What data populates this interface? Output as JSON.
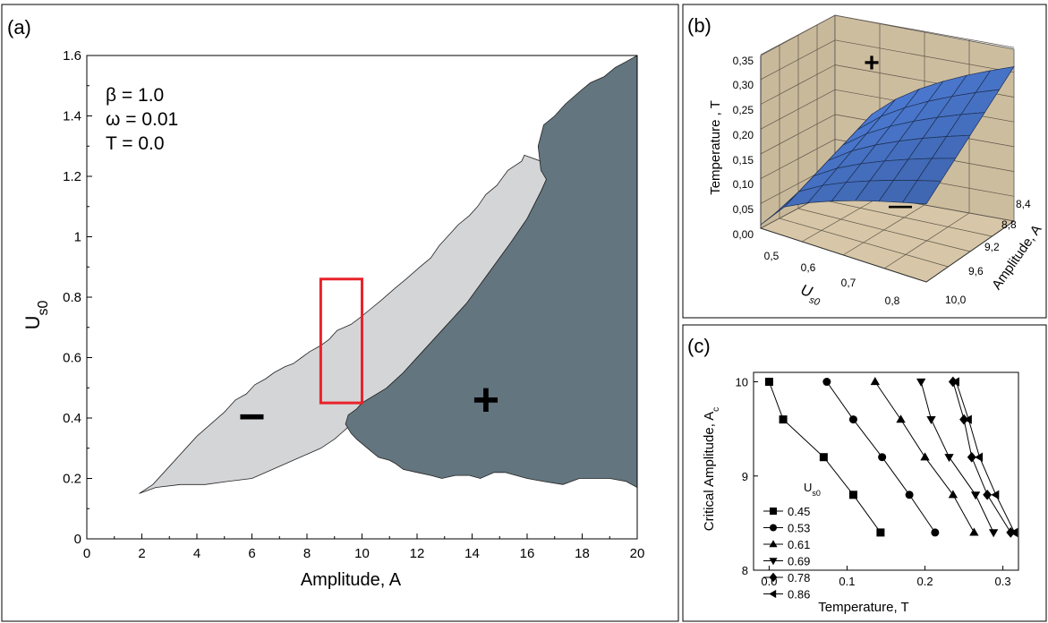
{
  "chart_data": [
    {
      "panel_label": "(a)",
      "type": "area",
      "xlabel": "Amplitude, A",
      "ylabel": "U",
      "ylabel_sub": "s0",
      "xlim": [
        0,
        20
      ],
      "ylim": [
        0,
        1.6
      ],
      "x_ticks": [
        0,
        2,
        4,
        6,
        8,
        10,
        12,
        14,
        16,
        18,
        20
      ],
      "y_ticks": [
        0,
        0.2,
        0.4,
        0.6,
        0.8,
        1,
        1.2,
        1.4,
        1.6
      ],
      "y_tick_labels": [
        "0",
        "0.2",
        "0.4",
        "0.6",
        "0.8",
        "1",
        "1.2",
        "1.4",
        "1.6"
      ],
      "annotations": [
        "β = 1.0",
        "ω = 0.01",
        "T = 0.0"
      ],
      "minus_sign": "−",
      "plus_sign": "+",
      "minus_pos": [
        6,
        0.4
      ],
      "plus_pos": [
        14.5,
        0.46
      ],
      "colors": {
        "light_region": "#d4d5d7",
        "dark_region": "#63757e",
        "highlight": "#e8232a"
      },
      "highlight_rect": {
        "x": [
          8.5,
          10
        ],
        "y": [
          0.45,
          0.86
        ]
      },
      "light_region": [
        [
          1.9,
          0.15
        ],
        [
          2.5,
          0.17
        ],
        [
          3.4,
          0.18
        ],
        [
          4.3,
          0.18
        ],
        [
          5.1,
          0.19
        ],
        [
          6.0,
          0.2
        ],
        [
          6.5,
          0.22
        ],
        [
          7.0,
          0.24
        ],
        [
          7.5,
          0.26
        ],
        [
          8.0,
          0.28
        ],
        [
          8.5,
          0.3
        ],
        [
          9.0,
          0.33
        ],
        [
          9.5,
          0.37
        ],
        [
          10.0,
          0.41
        ],
        [
          10.4,
          0.45
        ],
        [
          10.9,
          0.5
        ],
        [
          11.5,
          0.55
        ],
        [
          12.2,
          0.62
        ],
        [
          13.0,
          0.7
        ],
        [
          13.8,
          0.78
        ],
        [
          14.6,
          0.88
        ],
        [
          15.4,
          0.98
        ],
        [
          16.0,
          1.06
        ],
        [
          16.5,
          1.15
        ],
        [
          16.7,
          1.19
        ],
        [
          16.5,
          1.25
        ],
        [
          15.9,
          1.27
        ],
        [
          15.8,
          1.25
        ],
        [
          15.3,
          1.22
        ],
        [
          14.9,
          1.17
        ],
        [
          14.5,
          1.14
        ],
        [
          14.2,
          1.1
        ],
        [
          13.9,
          1.07
        ],
        [
          13.5,
          1.04
        ],
        [
          13.2,
          1.01
        ],
        [
          12.8,
          0.97
        ],
        [
          12.5,
          0.93
        ],
        [
          12.1,
          0.9
        ],
        [
          11.6,
          0.86
        ],
        [
          11.2,
          0.83
        ],
        [
          10.7,
          0.79
        ],
        [
          10.3,
          0.76
        ],
        [
          9.9,
          0.73
        ],
        [
          9.6,
          0.71
        ],
        [
          9.1,
          0.69
        ],
        [
          8.8,
          0.66
        ],
        [
          8.5,
          0.64
        ],
        [
          8.1,
          0.62
        ],
        [
          7.8,
          0.6
        ],
        [
          7.5,
          0.58
        ],
        [
          7.2,
          0.57
        ],
        [
          6.8,
          0.55
        ],
        [
          6.5,
          0.53
        ],
        [
          6.1,
          0.51
        ],
        [
          5.8,
          0.48
        ],
        [
          5.4,
          0.46
        ],
        [
          5.0,
          0.42
        ],
        [
          4.5,
          0.38
        ],
        [
          4.0,
          0.34
        ],
        [
          3.6,
          0.3
        ],
        [
          3.2,
          0.26
        ],
        [
          2.8,
          0.22
        ],
        [
          2.4,
          0.18
        ]
      ],
      "dark_region": [
        [
          10.0,
          0.45
        ],
        [
          10.9,
          0.5
        ],
        [
          11.5,
          0.55
        ],
        [
          12.2,
          0.62
        ],
        [
          13.0,
          0.7
        ],
        [
          13.8,
          0.78
        ],
        [
          14.6,
          0.88
        ],
        [
          15.4,
          0.98
        ],
        [
          16.0,
          1.06
        ],
        [
          16.5,
          1.15
        ],
        [
          16.7,
          1.19
        ],
        [
          16.5,
          1.22
        ],
        [
          16.4,
          1.3
        ],
        [
          16.6,
          1.37
        ],
        [
          17.0,
          1.4
        ],
        [
          17.4,
          1.44
        ],
        [
          17.9,
          1.48
        ],
        [
          18.3,
          1.51
        ],
        [
          18.8,
          1.53
        ],
        [
          19.2,
          1.56
        ],
        [
          19.6,
          1.58
        ],
        [
          20.0,
          1.6
        ],
        [
          20.0,
          0.17
        ],
        [
          19.6,
          0.19
        ],
        [
          19.0,
          0.2
        ],
        [
          18.4,
          0.2
        ],
        [
          17.9,
          0.2
        ],
        [
          17.3,
          0.18
        ],
        [
          16.6,
          0.19
        ],
        [
          16.0,
          0.2
        ],
        [
          15.6,
          0.21
        ],
        [
          15.2,
          0.22
        ],
        [
          14.8,
          0.22
        ],
        [
          14.3,
          0.2
        ],
        [
          13.9,
          0.21
        ],
        [
          13.4,
          0.21
        ],
        [
          12.9,
          0.2
        ],
        [
          12.5,
          0.21
        ],
        [
          12.0,
          0.22
        ],
        [
          11.5,
          0.23
        ],
        [
          11.2,
          0.25
        ],
        [
          11.0,
          0.26
        ],
        [
          10.6,
          0.27
        ],
        [
          10.2,
          0.3
        ],
        [
          9.8,
          0.33
        ],
        [
          9.6,
          0.35
        ],
        [
          9.4,
          0.38
        ],
        [
          9.5,
          0.41
        ],
        [
          9.8,
          0.43
        ]
      ]
    },
    {
      "panel_label": "(b)",
      "type": "surface",
      "xlabel": "U",
      "xlabel_sub": "s0",
      "ylabel": "Amplitude, A",
      "zlabel": "Temperature , T",
      "x_ticks": [
        "0,5",
        "0,6",
        "0,7",
        "0,8"
      ],
      "y_ticks": [
        "8,4",
        "8,8",
        "9,2",
        "9,6",
        "10,0"
      ],
      "z_ticks": [
        "0,00",
        "0,05",
        "0,10",
        "0,15",
        "0,20",
        "0,25",
        "0,30",
        "0,35"
      ],
      "plus_sign": "+",
      "minus_sign": "—",
      "colors": {
        "floor": "#d7c7a8",
        "wall": "#c4b497",
        "surface": "#4f7dc4"
      }
    },
    {
      "panel_label": "(c)",
      "type": "line",
      "xlabel": "Temperature, T",
      "ylabel": "Critical Amplitude, A",
      "ylabel_sub": "c",
      "xlim": [
        -0.02,
        0.32
      ],
      "ylim": [
        8,
        10.1
      ],
      "x_ticks": [
        0.0,
        0.1,
        0.2,
        0.3
      ],
      "x_tick_labels": [
        "0.0",
        "0.1",
        "0.2",
        "0.3"
      ],
      "y_ticks": [
        8,
        9,
        10
      ],
      "y_tick_labels": [
        "8",
        "9",
        "10"
      ],
      "legend_title": "U",
      "legend_title_sub": "s0",
      "legend_placement": "left",
      "series": [
        {
          "name": "0.45",
          "marker": "square",
          "x": [
            0.0,
            0.018,
            0.07,
            0.108,
            0.143
          ],
          "y": [
            10.0,
            9.6,
            9.2,
            8.8,
            8.4
          ]
        },
        {
          "name": "0.53",
          "marker": "circle",
          "x": [
            0.074,
            0.108,
            0.145,
            0.18,
            0.213
          ],
          "y": [
            10.0,
            9.6,
            9.2,
            8.8,
            8.4
          ]
        },
        {
          "name": "0.61",
          "marker": "triangle-up",
          "x": [
            0.136,
            0.169,
            0.2,
            0.236,
            0.263
          ],
          "y": [
            10.0,
            9.6,
            9.2,
            8.8,
            8.4
          ]
        },
        {
          "name": "0.69",
          "marker": "triangle-down",
          "x": [
            0.195,
            0.208,
            0.231,
            0.265,
            0.288
          ],
          "y": [
            10.0,
            9.6,
            9.2,
            8.8,
            8.4
          ]
        },
        {
          "name": "0.78",
          "marker": "diamond",
          "x": [
            0.236,
            0.25,
            0.26,
            0.28,
            0.31
          ],
          "y": [
            10.0,
            9.6,
            9.2,
            8.8,
            8.4
          ]
        },
        {
          "name": "0.86",
          "marker": "triangle-left",
          "x": [
            0.24,
            0.256,
            0.27,
            0.291,
            0.315
          ],
          "y": [
            10.0,
            9.6,
            9.2,
            8.8,
            8.4
          ]
        }
      ]
    }
  ]
}
